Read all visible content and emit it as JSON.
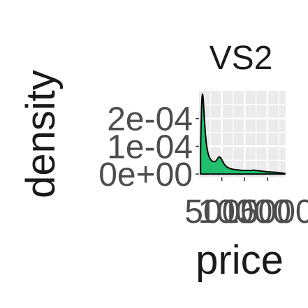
{
  "chart_data": {
    "type": "area",
    "title": "VS2",
    "xlabel": "price",
    "ylabel": "density",
    "xlim": [
      0,
      19000
    ],
    "ylim": [
      -1.2e-05,
      0.0003
    ],
    "x_ticks": [
      {
        "value": 5000,
        "label": "5000"
      },
      {
        "value": 10000,
        "label": "10000"
      },
      {
        "value": 15000,
        "label": "15000"
      }
    ],
    "y_ticks": [
      {
        "value": 0,
        "label": "0e+00"
      },
      {
        "value": 0.0001,
        "label": "1e-04"
      },
      {
        "value": 0.0002,
        "label": "2e-04"
      }
    ],
    "grid": true,
    "colors": {
      "fill": "#1fbf6d",
      "line": "#000000",
      "panel": "#ebebeb",
      "grid": "#ffffff"
    },
    "series": [
      {
        "x": [
          334,
          450,
          550,
          650,
          750,
          850,
          950,
          1050,
          1200,
          1400,
          1600,
          1800,
          2000,
          2200,
          2400,
          2600,
          2800,
          3000,
          3200,
          3400,
          3600,
          3800,
          4000,
          4200,
          4400,
          4700,
          5000,
          5300,
          5600,
          6000,
          6500,
          7000,
          7500,
          8000,
          8500,
          9000,
          9500,
          10000,
          10500,
          11000,
          11500,
          12000,
          12500,
          13000,
          13500,
          14000,
          14500,
          15000,
          15500,
          16000,
          16500,
          17000,
          17500,
          18000,
          18500,
          18823
        ],
        "y": [
          9e-05,
          0.00017,
          0.00024,
          0.000276,
          0.000288,
          0.000282,
          0.000262,
          0.000232,
          0.00019,
          0.000143,
          0.00011,
          8.8e-05,
          7.3e-05,
          6.3e-05,
          5.6e-05,
          5.1e-05,
          4.8e-05,
          4.6e-05,
          4.5e-05,
          4.5e-05,
          4.6e-05,
          4.9e-05,
          5.4e-05,
          5.9e-05,
          6.2e-05,
          6e-05,
          5.2e-05,
          4.2e-05,
          3.4e-05,
          2.7e-05,
          2.2e-05,
          1.9e-05,
          1.7e-05,
          1.6e-05,
          1.5e-05,
          1.4e-05,
          1.3e-05,
          1.3e-05,
          1.3e-05,
          1.3e-05,
          1.3e-05,
          1.4e-05,
          1.3e-05,
          1.2e-05,
          1.1e-05,
          1e-05,
          9e-06,
          8e-06,
          8e-06,
          7e-06,
          7e-06,
          6e-06,
          5e-06,
          4e-06,
          3e-06,
          2e-06
        ]
      }
    ]
  }
}
